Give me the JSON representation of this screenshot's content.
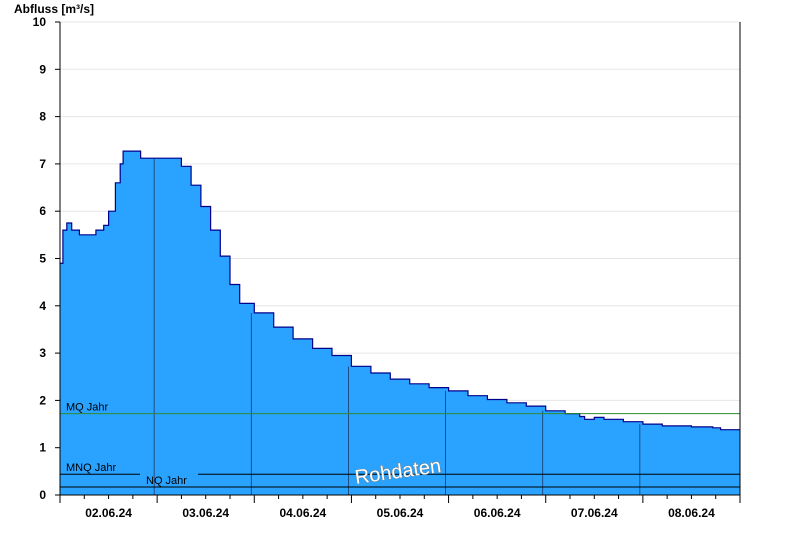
{
  "chart_data": {
    "type": "area",
    "ylabel": "Abfluss [m³/s]",
    "ylim": [
      0,
      10
    ],
    "yticks": [
      0,
      1,
      2,
      3,
      4,
      5,
      6,
      7,
      8,
      9,
      10
    ],
    "x_range_days": [
      0,
      7
    ],
    "day_labels": [
      "02.06.24",
      "03.06.24",
      "04.06.24",
      "05.06.24",
      "06.06.24",
      "07.06.24",
      "08.06.24"
    ],
    "grid": true,
    "series": [
      {
        "values": [
          [
            0.0,
            4.9
          ],
          [
            0.03,
            5.6
          ],
          [
            0.07,
            5.75
          ],
          [
            0.12,
            5.6
          ],
          [
            0.2,
            5.5
          ],
          [
            0.37,
            5.6
          ],
          [
            0.45,
            5.7
          ],
          [
            0.5,
            6.0
          ],
          [
            0.57,
            6.6
          ],
          [
            0.62,
            7.0
          ],
          [
            0.65,
            7.27
          ],
          [
            0.8,
            7.27
          ],
          [
            0.83,
            7.12
          ],
          [
            1.2,
            7.12
          ],
          [
            1.25,
            6.95
          ],
          [
            1.35,
            6.55
          ],
          [
            1.45,
            6.1
          ],
          [
            1.55,
            5.6
          ],
          [
            1.65,
            5.05
          ],
          [
            1.75,
            4.45
          ],
          [
            1.85,
            4.05
          ],
          [
            2.0,
            3.85
          ],
          [
            2.2,
            3.55
          ],
          [
            2.4,
            3.3
          ],
          [
            2.6,
            3.1
          ],
          [
            2.8,
            2.95
          ],
          [
            3.0,
            2.72
          ],
          [
            3.2,
            2.58
          ],
          [
            3.4,
            2.45
          ],
          [
            3.6,
            2.35
          ],
          [
            3.8,
            2.27
          ],
          [
            4.0,
            2.2
          ],
          [
            4.2,
            2.1
          ],
          [
            4.4,
            2.02
          ],
          [
            4.6,
            1.95
          ],
          [
            4.8,
            1.88
          ],
          [
            5.0,
            1.78
          ],
          [
            5.2,
            1.72
          ],
          [
            5.35,
            1.66
          ],
          [
            5.4,
            1.6
          ],
          [
            5.5,
            1.64
          ],
          [
            5.6,
            1.6
          ],
          [
            5.8,
            1.55
          ],
          [
            6.0,
            1.5
          ],
          [
            6.2,
            1.46
          ],
          [
            6.5,
            1.44
          ],
          [
            6.72,
            1.42
          ],
          [
            6.8,
            1.38
          ],
          [
            7.0,
            1.38
          ]
        ],
        "color": "#29a3ff"
      }
    ],
    "reference_lines": [
      {
        "label": "MQ Jahr",
        "value": 1.72,
        "color": "#2e8b2e"
      },
      {
        "label": "MNQ Jahr",
        "value": 0.44,
        "color": "#000000"
      },
      {
        "label": "NQ Jahr",
        "value": 0.17,
        "color": "#000000"
      }
    ],
    "watermark": "Rohdaten",
    "colors": {
      "area_fill": "#29a3ff",
      "area_line": "#00008b",
      "grid": "#e6e6e6",
      "axis": "#000000"
    }
  }
}
